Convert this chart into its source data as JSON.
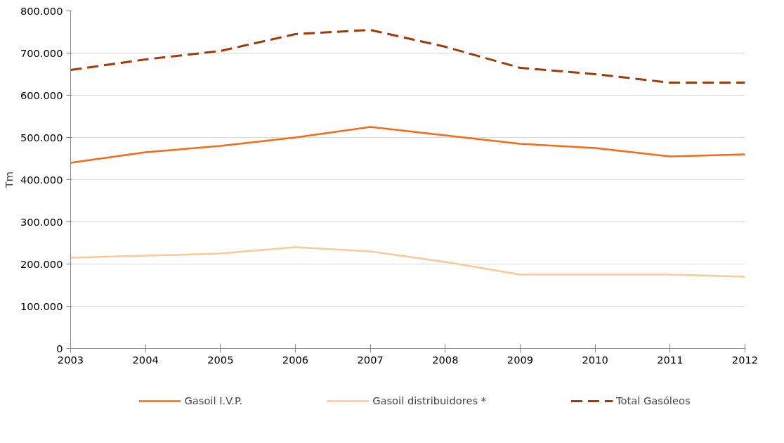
{
  "chart_data": {
    "type": "line",
    "ylabel": "Tm",
    "x": [
      2003,
      2004,
      2005,
      2006,
      2007,
      2008,
      2009,
      2010,
      2011,
      2012
    ],
    "xlim": [
      2003,
      2012
    ],
    "xticks": [
      2003,
      2004,
      2005,
      2006,
      2007,
      2008,
      2009,
      2010,
      2011,
      2012
    ],
    "ylim": [
      0,
      800000
    ],
    "yticks": [
      0,
      {
        "value": 100000,
        "label": "100.000"
      },
      {
        "value": 200000,
        "label": "200.000"
      },
      {
        "value": 300000,
        "label": "300.000"
      },
      {
        "value": 400000,
        "label": "400.000"
      },
      {
        "value": 500000,
        "label": "500.000"
      },
      {
        "value": 600000,
        "label": "600.000"
      },
      {
        "value": 700000,
        "label": "700.000"
      },
      {
        "value": 800000,
        "label": "800.000"
      }
    ],
    "grid": "y",
    "legend": "bottom",
    "marker": "none",
    "series": [
      {
        "name": "Gasoil I.V.P.",
        "color": "#f96a10",
        "line_style": "solid",
        "values": [
          440000,
          465000,
          480000,
          500000,
          525000,
          505000,
          485000,
          475000,
          455000,
          460000
        ]
      },
      {
        "name": "Gasoil distribuidores *",
        "color": "#fbc996",
        "line_style": "solid",
        "values": [
          215000,
          220000,
          225000,
          240000,
          230000,
          205000,
          175000,
          175000,
          175000,
          170000
        ]
      },
      {
        "name": "Total Gasóleos",
        "color": "#a33a05",
        "line_style": "dashed",
        "values": [
          660000,
          685000,
          705000,
          745000,
          755000,
          715000,
          665000,
          650000,
          630000,
          630000
        ]
      }
    ]
  }
}
